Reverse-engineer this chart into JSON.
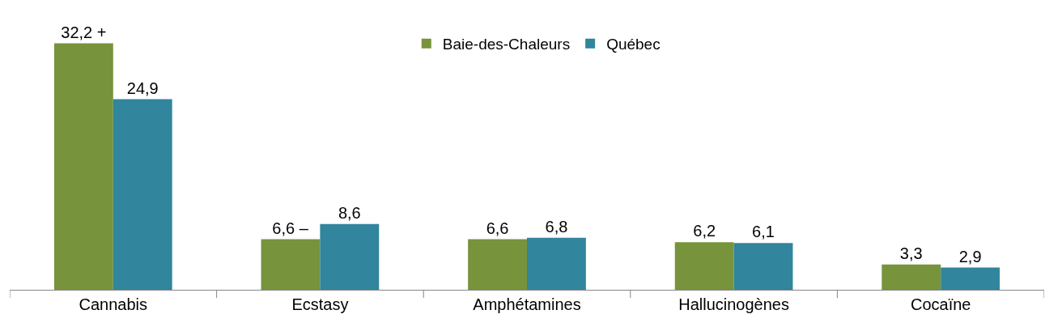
{
  "chart_data": {
    "type": "bar",
    "categories": [
      "Cannabis",
      "Ecstasy",
      "Amphétamines",
      "Hallucinogènes",
      "Cocaïne"
    ],
    "series": [
      {
        "name": "Baie-des-Chaleurs",
        "color": "#77933c",
        "values": [
          32.2,
          6.6,
          6.6,
          6.2,
          3.3
        ],
        "value_labels": [
          "32,2 +",
          "6,6 –",
          "6,6",
          "6,2",
          "3,3"
        ]
      },
      {
        "name": "Québec",
        "color": "#31859c",
        "values": [
          24.9,
          8.6,
          6.8,
          6.1,
          2.9
        ],
        "value_labels": [
          "24,9",
          "8,6",
          "6,8",
          "6,1",
          "2,9"
        ]
      }
    ],
    "legend": "top",
    "tick_labels": "x"
  }
}
